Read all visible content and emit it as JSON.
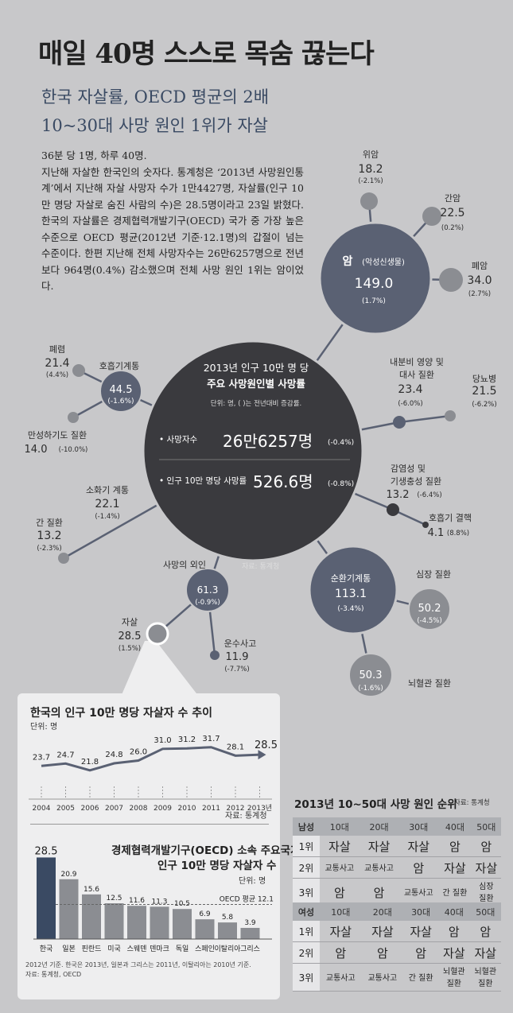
{
  "title": "매일 40명 스스로 목숨 끊는다",
  "subtitle_1": "한국 자살률, OECD 평균의 2배",
  "subtitle_2": "10~30대 사망 원인 1위가 자살",
  "intro": [
    "36분 당 1명, 하루 40명.",
    "지난해 자살한 한국인의 숫자다. 통계청은 ‘2013년 사망원인통계’에서 지난해 자살 사망자 수가 1만4427명, 자살률(인구 10만 명당 자살로 숨진 사람의 수)은 28.5명이라고 23일 밝혔다. 한국의 자살률은 경제협력개발기구(OECD) 국가 중 가장 높은 수준으로 OECD 평균(2012년 기준·12.1명)의 갑절이 넘는 수준이다. 한편 지난해 전체 사망자수는 26만6257명으로 전년보다 964명(0.4%) 감소했으며 전체 사망 원인 1위는 암이었다."
  ],
  "colors": {
    "dark": "#3a3a3e",
    "mid": "#5a6173",
    "light": "#8b8d92",
    "bg": "#c8c8ca",
    "line": "#5a6173"
  },
  "center": {
    "title_1": "2013년 인구 10만 명 당",
    "title_2": "주요 사망원인별 사망률",
    "unit": "단위: 명, ( )는 전년대비 증감률.",
    "deaths_label": "• 사망자수",
    "deaths_value": "26만6257명",
    "deaths_change": "(-0.4%)",
    "rate_label": "• 인구 10만 명당 사망률",
    "rate_value": "526.6명",
    "rate_change": "(-0.8%)",
    "source": "자료: 통계청"
  },
  "causes": {
    "cancer": {
      "name": "암",
      "detail": "(악성신생물)",
      "value": "149.0",
      "change": "(1.7%)"
    },
    "stomach": {
      "name": "위암",
      "value": "18.2",
      "change": "(-2.1%)"
    },
    "liver_cancer": {
      "name": "간암",
      "value": "22.5",
      "change": "(0.2%)"
    },
    "lung_cancer": {
      "name": "폐암",
      "value": "34.0",
      "change": "(2.7%)"
    },
    "respiratory": {
      "name": "호흡기계통",
      "value": "44.5",
      "change": "(-1.6%)"
    },
    "pneumonia": {
      "name": "폐렴",
      "value": "21.4",
      "change": "(4.4%)"
    },
    "copd": {
      "name": "만성하기도 질환",
      "value": "14.0",
      "change": "(-10.0%)"
    },
    "endocrine": {
      "name_1": "내분비 영양 및",
      "name_2": "대사 질환",
      "value": "23.4",
      "change": "(-6.0%)"
    },
    "diabetes": {
      "name": "당뇨병",
      "value": "21.5",
      "change": "(-6.2%)"
    },
    "infectious": {
      "name_1": "감염성 및",
      "name_2": "기생충성 질환",
      "value": "13.2",
      "change": "(-6.4%)"
    },
    "tb": {
      "name": "호흡기 결핵",
      "value": "4.1",
      "change": "(8.8%)"
    },
    "digestive": {
      "name": "소화기 계통",
      "value": "22.1",
      "change": "(-1.4%)"
    },
    "liver_disease": {
      "name": "간 질환",
      "value": "13.2",
      "change": "(-2.3%)"
    },
    "external": {
      "name": "사망의 외인",
      "value": "61.3",
      "change": "(-0.9%)"
    },
    "suicide": {
      "name": "자살",
      "value": "28.5",
      "change": "(1.5%)"
    },
    "traffic": {
      "name": "운수사고",
      "value": "11.9",
      "change": "(-7.7%)"
    },
    "circulatory": {
      "name": "순환기계통",
      "value": "113.1",
      "change": "(-3.4%)"
    },
    "heart": {
      "name": "심장 질환",
      "value": "50.2",
      "change": "(-4.5%)"
    },
    "cerebro": {
      "name": "뇌혈관 질환",
      "value": "50.3",
      "change": "(-1.6%)"
    }
  },
  "trend": {
    "title": "한국의 인구 10만 명당 자살자 수 추이",
    "unit": "단위: 명",
    "source": "자료: 통계청"
  },
  "oecd": {
    "title_1": "경제협력개발기구(OECD) 소속 주요국가",
    "title_2": "인구 10만 명당 자살자 수",
    "unit": "단위: 명",
    "avg_label": "OECD 평균 12.1",
    "avg_value": 12.1,
    "note_1": "2012년 기준. 한국은 2013년, 일본과 그리스는 2011년, 이탈리아는 2010년 기준.",
    "note_2": "자료: 통계청, OECD"
  },
  "chart_data": [
    {
      "type": "line",
      "title": "한국의 인구 10만 명당 자살자 수 추이",
      "ylabel": "단위: 명",
      "x": [
        "2004",
        "2005",
        "2006",
        "2007",
        "2008",
        "2009",
        "2010",
        "2011",
        "2012",
        "2013년"
      ],
      "values": [
        23.7,
        24.7,
        21.8,
        24.8,
        26.0,
        31.0,
        31.2,
        31.7,
        28.1,
        28.5
      ],
      "labels": [
        "23.7",
        "24.7",
        "21.8",
        "24.8",
        "26.0",
        "31.0",
        "31.2",
        "31.7",
        "28.1",
        "28.5"
      ],
      "ylim": [
        18,
        34
      ]
    },
    {
      "type": "bar",
      "title": "경제협력개발기구(OECD) 소속 주요국가 인구 10만 명당 자살자 수",
      "categories": [
        "한국",
        "일본",
        "핀란드",
        "미국",
        "스웨덴",
        "덴마크",
        "독일",
        "스페인",
        "이탈리아",
        "그리스"
      ],
      "values": [
        28.5,
        20.9,
        15.6,
        12.5,
        11.6,
        11.3,
        10.5,
        6.9,
        5.8,
        3.9
      ],
      "labels": [
        "28.5",
        "20.9",
        "15.6",
        "12.5",
        "11.6",
        "11.3",
        "10.5",
        "6.9",
        "5.8",
        "3.9"
      ],
      "ylim": [
        0,
        30
      ]
    },
    {
      "type": "table",
      "title": "2013년 10~50대 사망 원인 순위",
      "source": "자료: 통계청",
      "columns": [
        "10대",
        "20대",
        "30대",
        "40대",
        "50대"
      ],
      "groups": [
        {
          "name": "남성",
          "rows": [
            {
              "rank": "1위",
              "cells": [
                "자살",
                "자살",
                "자살",
                "암",
                "암"
              ]
            },
            {
              "rank": "2위",
              "cells": [
                "교통사고",
                "교통사고",
                "암",
                "자살",
                "자살"
              ]
            },
            {
              "rank": "3위",
              "cells": [
                "암",
                "암",
                "교통사고",
                "간 질환",
                "심장 질환"
              ]
            }
          ]
        },
        {
          "name": "여성",
          "rows": [
            {
              "rank": "1위",
              "cells": [
                "자살",
                "자살",
                "자살",
                "암",
                "암"
              ]
            },
            {
              "rank": "2위",
              "cells": [
                "암",
                "암",
                "암",
                "자살",
                "자살"
              ]
            },
            {
              "rank": "3위",
              "cells": [
                "교통사고",
                "교통사고",
                "간 질환",
                "뇌혈관 질환",
                "뇌혈관 질환"
              ]
            }
          ]
        }
      ]
    }
  ]
}
